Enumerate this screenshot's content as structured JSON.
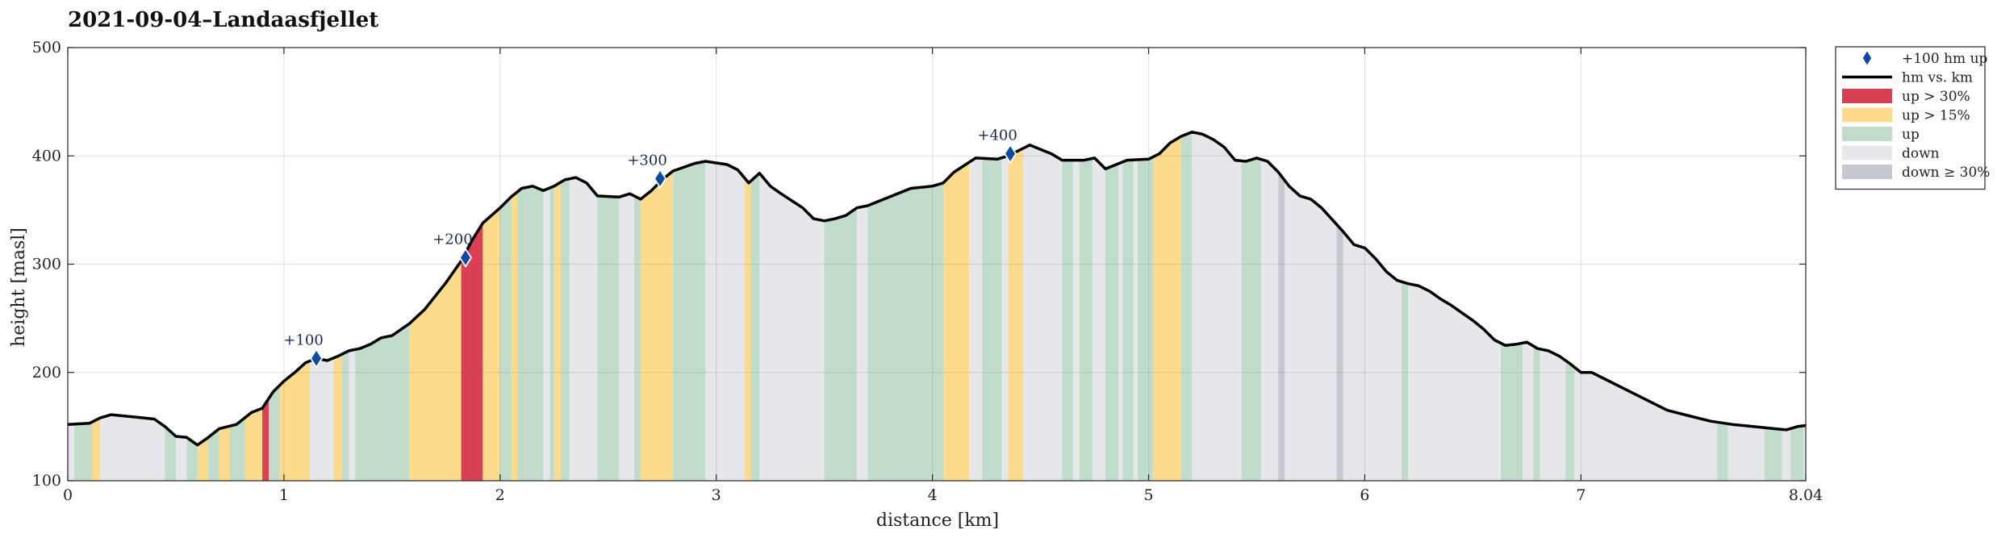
{
  "chart_data": {
    "type": "area",
    "title": "2021-09-04–Landaasfjellet",
    "xlabel": "distance [km]",
    "ylabel": "height [masl]",
    "xlim": [
      0,
      8.04
    ],
    "ylim": [
      100,
      500
    ],
    "xticks": [
      0,
      1,
      2,
      3,
      4,
      5,
      6,
      7,
      8.04
    ],
    "xtick_labels": [
      "0",
      "1",
      "2",
      "3",
      "4",
      "5",
      "6",
      "7",
      "8.04"
    ],
    "yticks": [
      100,
      200,
      300,
      400,
      500
    ],
    "ytick_labels": [
      "100",
      "200",
      "300",
      "400",
      "500"
    ],
    "grid": true,
    "legend_position": "outside-top-right",
    "legend": [
      {
        "key": "marker",
        "label": "+100 hm up"
      },
      {
        "key": "line",
        "label": "hm vs. km"
      },
      {
        "key": "steep",
        "label": "up > 30%"
      },
      {
        "key": "medium",
        "label": "up > 15%"
      },
      {
        "key": "up",
        "label": "up"
      },
      {
        "key": "down",
        "label": "down"
      },
      {
        "key": "downsteep",
        "label": "down ≥ 30%"
      }
    ],
    "colors": {
      "steep": "#d94055",
      "medium": "#fddb8c",
      "up": "#c1dccb",
      "down": "#e6e7ea",
      "downsteep": "#c6c8d0",
      "line": "#000000",
      "marker": "#0d4aa0"
    },
    "profile": [
      [
        0.0,
        152
      ],
      [
        0.1,
        153
      ],
      [
        0.15,
        158
      ],
      [
        0.2,
        161
      ],
      [
        0.3,
        159
      ],
      [
        0.4,
        157
      ],
      [
        0.45,
        150
      ],
      [
        0.5,
        141
      ],
      [
        0.55,
        140
      ],
      [
        0.6,
        133
      ],
      [
        0.65,
        140
      ],
      [
        0.7,
        148
      ],
      [
        0.78,
        152
      ],
      [
        0.85,
        163
      ],
      [
        0.9,
        167
      ],
      [
        0.95,
        182
      ],
      [
        1.0,
        192
      ],
      [
        1.05,
        200
      ],
      [
        1.1,
        209
      ],
      [
        1.15,
        213
      ],
      [
        1.2,
        211
      ],
      [
        1.25,
        215
      ],
      [
        1.3,
        220
      ],
      [
        1.35,
        222
      ],
      [
        1.4,
        226
      ],
      [
        1.45,
        232
      ],
      [
        1.5,
        234
      ],
      [
        1.58,
        245
      ],
      [
        1.65,
        258
      ],
      [
        1.75,
        283
      ],
      [
        1.82,
        303
      ],
      [
        1.87,
        322
      ],
      [
        1.92,
        338
      ],
      [
        2.0,
        352
      ],
      [
        2.05,
        362
      ],
      [
        2.1,
        370
      ],
      [
        2.15,
        372
      ],
      [
        2.2,
        368
      ],
      [
        2.25,
        372
      ],
      [
        2.3,
        378
      ],
      [
        2.35,
        380
      ],
      [
        2.4,
        375
      ],
      [
        2.45,
        363
      ],
      [
        2.55,
        362
      ],
      [
        2.6,
        365
      ],
      [
        2.65,
        360
      ],
      [
        2.7,
        368
      ],
      [
        2.75,
        378
      ],
      [
        2.8,
        386
      ],
      [
        2.9,
        393
      ],
      [
        2.95,
        395
      ],
      [
        3.05,
        392
      ],
      [
        3.1,
        387
      ],
      [
        3.15,
        375
      ],
      [
        3.2,
        384
      ],
      [
        3.25,
        372
      ],
      [
        3.3,
        365
      ],
      [
        3.4,
        352
      ],
      [
        3.45,
        342
      ],
      [
        3.5,
        340
      ],
      [
        3.55,
        342
      ],
      [
        3.6,
        345
      ],
      [
        3.65,
        352
      ],
      [
        3.7,
        354
      ],
      [
        3.8,
        362
      ],
      [
        3.9,
        370
      ],
      [
        4.0,
        372
      ],
      [
        4.05,
        375
      ],
      [
        4.1,
        385
      ],
      [
        4.2,
        398
      ],
      [
        4.3,
        397
      ],
      [
        4.35,
        400
      ],
      [
        4.4,
        405
      ],
      [
        4.45,
        410
      ],
      [
        4.5,
        406
      ],
      [
        4.55,
        402
      ],
      [
        4.6,
        396
      ],
      [
        4.7,
        396
      ],
      [
        4.75,
        398
      ],
      [
        4.8,
        388
      ],
      [
        4.85,
        392
      ],
      [
        4.9,
        396
      ],
      [
        5.0,
        397
      ],
      [
        5.05,
        402
      ],
      [
        5.1,
        412
      ],
      [
        5.15,
        418
      ],
      [
        5.2,
        422
      ],
      [
        5.25,
        420
      ],
      [
        5.3,
        415
      ],
      [
        5.35,
        408
      ],
      [
        5.4,
        396
      ],
      [
        5.45,
        395
      ],
      [
        5.5,
        398
      ],
      [
        5.55,
        395
      ],
      [
        5.6,
        385
      ],
      [
        5.65,
        372
      ],
      [
        5.7,
        363
      ],
      [
        5.75,
        360
      ],
      [
        5.8,
        352
      ],
      [
        5.9,
        330
      ],
      [
        5.95,
        318
      ],
      [
        6.0,
        315
      ],
      [
        6.05,
        305
      ],
      [
        6.1,
        293
      ],
      [
        6.15,
        285
      ],
      [
        6.2,
        282
      ],
      [
        6.25,
        280
      ],
      [
        6.3,
        275
      ],
      [
        6.35,
        268
      ],
      [
        6.4,
        262
      ],
      [
        6.45,
        255
      ],
      [
        6.5,
        248
      ],
      [
        6.55,
        240
      ],
      [
        6.6,
        230
      ],
      [
        6.65,
        225
      ],
      [
        6.7,
        226
      ],
      [
        6.75,
        228
      ],
      [
        6.8,
        222
      ],
      [
        6.85,
        220
      ],
      [
        6.9,
        215
      ],
      [
        6.95,
        208
      ],
      [
        7.0,
        200
      ],
      [
        7.05,
        200
      ],
      [
        7.1,
        195
      ],
      [
        7.2,
        185
      ],
      [
        7.3,
        175
      ],
      [
        7.4,
        165
      ],
      [
        7.5,
        160
      ],
      [
        7.6,
        155
      ],
      [
        7.7,
        152
      ],
      [
        7.8,
        150
      ],
      [
        7.9,
        148
      ],
      [
        7.95,
        147
      ],
      [
        8.0,
        150
      ],
      [
        8.04,
        151
      ]
    ],
    "bands": [
      [
        "up",
        0.03,
        0.11
      ],
      [
        "medium",
        0.11,
        0.15
      ],
      [
        "down",
        0.15,
        0.45
      ],
      [
        "up",
        0.45,
        0.5
      ],
      [
        "down",
        0.5,
        0.55
      ],
      [
        "up",
        0.55,
        0.6
      ],
      [
        "medium",
        0.6,
        0.65
      ],
      [
        "up",
        0.65,
        0.7
      ],
      [
        "medium",
        0.7,
        0.75
      ],
      [
        "up",
        0.75,
        0.82
      ],
      [
        "medium",
        0.82,
        0.9
      ],
      [
        "steep",
        0.9,
        0.93
      ],
      [
        "up",
        0.93,
        0.98
      ],
      [
        "medium",
        0.98,
        1.05
      ],
      [
        "medium",
        1.05,
        1.12
      ],
      [
        "down",
        1.12,
        1.2
      ],
      [
        "medium",
        1.23,
        1.27
      ],
      [
        "up",
        1.27,
        1.3
      ],
      [
        "up",
        1.33,
        1.58
      ],
      [
        "medium",
        1.58,
        1.82
      ],
      [
        "steep",
        1.82,
        1.92
      ],
      [
        "medium",
        1.92,
        2.0
      ],
      [
        "up",
        2.0,
        2.05
      ],
      [
        "medium",
        2.05,
        2.08
      ],
      [
        "up",
        2.08,
        2.2
      ],
      [
        "down",
        2.2,
        2.23
      ],
      [
        "up",
        2.23,
        2.25
      ],
      [
        "medium",
        2.25,
        2.28
      ],
      [
        "up",
        2.28,
        2.32
      ],
      [
        "down",
        2.32,
        2.45
      ],
      [
        "up",
        2.45,
        2.55
      ],
      [
        "down",
        2.55,
        2.62
      ],
      [
        "up",
        2.62,
        2.65
      ],
      [
        "medium",
        2.65,
        2.8
      ],
      [
        "up",
        2.8,
        2.95
      ],
      [
        "down",
        2.95,
        3.13
      ],
      [
        "medium",
        3.13,
        3.16
      ],
      [
        "up",
        3.16,
        3.2
      ],
      [
        "down",
        3.2,
        3.5
      ],
      [
        "up",
        3.5,
        3.65
      ],
      [
        "down",
        3.65,
        3.7
      ],
      [
        "up",
        3.7,
        4.05
      ],
      [
        "medium",
        4.05,
        4.17
      ],
      [
        "down",
        4.17,
        4.23
      ],
      [
        "up",
        4.23,
        4.32
      ],
      [
        "down",
        4.32,
        4.35
      ],
      [
        "medium",
        4.35,
        4.42
      ],
      [
        "down",
        4.42,
        4.6
      ],
      [
        "up",
        4.6,
        4.65
      ],
      [
        "down",
        4.65,
        4.68
      ],
      [
        "up",
        4.68,
        4.74
      ],
      [
        "down",
        4.74,
        4.8
      ],
      [
        "up",
        4.8,
        4.86
      ],
      [
        "down",
        4.86,
        4.88
      ],
      [
        "up",
        4.88,
        4.93
      ],
      [
        "down",
        4.93,
        4.95
      ],
      [
        "up",
        4.95,
        5.02
      ],
      [
        "medium",
        5.02,
        5.15
      ],
      [
        "up",
        5.15,
        5.2
      ],
      [
        "down",
        5.2,
        5.43
      ],
      [
        "up",
        5.43,
        5.52
      ],
      [
        "down",
        5.52,
        5.6
      ],
      [
        "downsteep",
        5.6,
        5.63
      ],
      [
        "down",
        5.63,
        5.87
      ],
      [
        "downsteep",
        5.87,
        5.9
      ],
      [
        "down",
        5.9,
        6.17
      ],
      [
        "up",
        6.17,
        6.2
      ],
      [
        "down",
        6.2,
        6.63
      ],
      [
        "up",
        6.63,
        6.73
      ],
      [
        "down",
        6.73,
        6.78
      ],
      [
        "up",
        6.78,
        6.81
      ],
      [
        "down",
        6.81,
        6.93
      ],
      [
        "up",
        6.93,
        6.97
      ],
      [
        "down",
        6.97,
        7.63
      ],
      [
        "up",
        7.63,
        7.68
      ],
      [
        "down",
        7.68,
        7.85
      ],
      [
        "up",
        7.85,
        7.93
      ],
      [
        "down",
        7.93,
        7.97
      ],
      [
        "up",
        7.97,
        8.03
      ]
    ],
    "markers": [
      {
        "x": 1.15,
        "y": 213,
        "label": "+100"
      },
      {
        "x": 1.84,
        "y": 306,
        "label": "+200"
      },
      {
        "x": 2.74,
        "y": 379,
        "label": "+300"
      },
      {
        "x": 4.36,
        "y": 402,
        "label": "+400"
      }
    ]
  }
}
